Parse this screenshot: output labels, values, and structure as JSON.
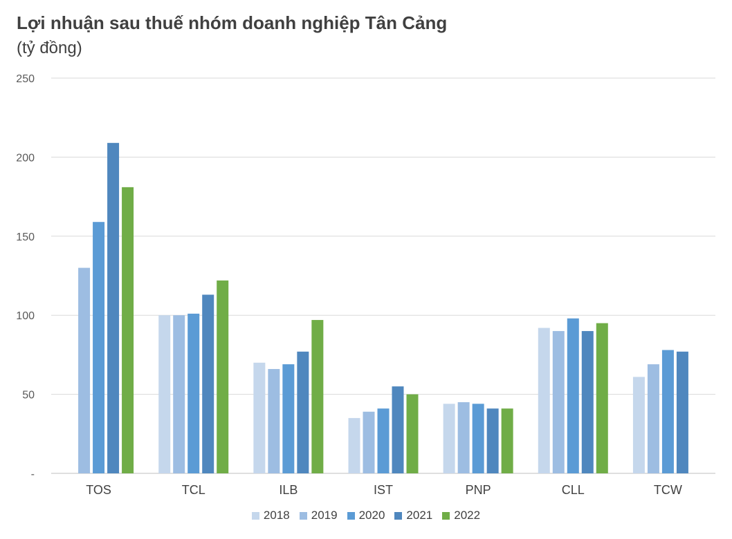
{
  "chart_data": {
    "type": "bar",
    "title": "Lợi nhuận sau thuế nhóm doanh nghiệp Tân Cảng",
    "subtitle": "(tỷ đồng)",
    "categories": [
      "TOS",
      "TCL",
      "ILB",
      "IST",
      "PNP",
      "CLL",
      "TCW"
    ],
    "ylim": [
      0,
      250
    ],
    "yticks": [
      {
        "value": 0,
        "label": "-"
      },
      {
        "value": 50,
        "label": "50"
      },
      {
        "value": 100,
        "label": "100"
      },
      {
        "value": 150,
        "label": "150"
      },
      {
        "value": 200,
        "label": "200"
      },
      {
        "value": 250,
        "label": "250"
      }
    ],
    "grid": true,
    "legend_position": "bottom",
    "series": [
      {
        "name": "2018",
        "color": "#c5d7ec",
        "values": [
          null,
          100,
          70,
          35,
          44,
          92,
          61
        ]
      },
      {
        "name": "2019",
        "color": "#9dbde2",
        "values": [
          130,
          100,
          66,
          39,
          45,
          90,
          69
        ]
      },
      {
        "name": "2020",
        "color": "#5b9bd5",
        "values": [
          159,
          101,
          69,
          41,
          44,
          98,
          78
        ]
      },
      {
        "name": "2021",
        "color": "#4f87be",
        "values": [
          209,
          113,
          77,
          55,
          41,
          90,
          77
        ]
      },
      {
        "name": "2022",
        "color": "#70ad47",
        "values": [
          181,
          122,
          97,
          50,
          41,
          95,
          null
        ]
      }
    ]
  }
}
